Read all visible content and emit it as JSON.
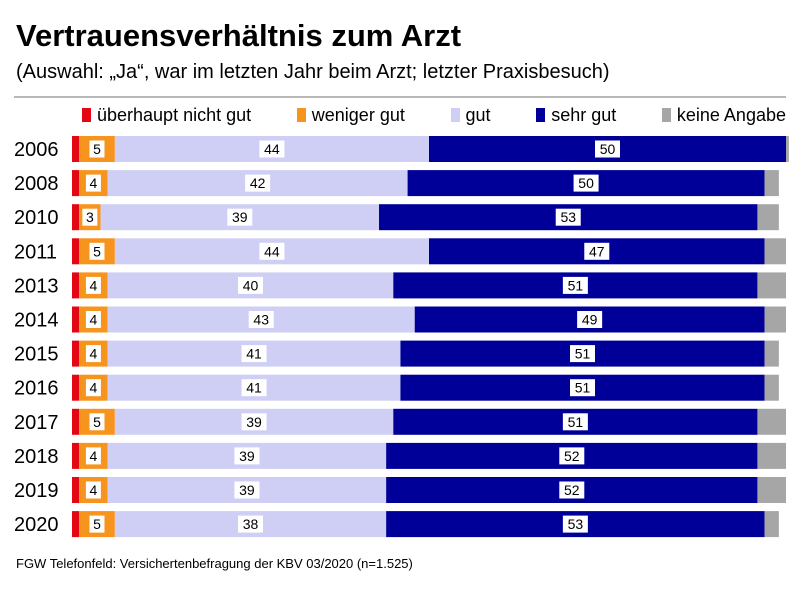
{
  "title": "Vertrauensverhältnis zum Arzt",
  "subtitle": "(Auswahl: „Ja“, war im letzten Jahr beim Arzt; letzter Praxisbesuch)",
  "source": "FGW Telefonfeld: Versichertenbefragung der KBV 03/2020 (n=1.525)",
  "chart_data": {
    "type": "bar",
    "orientation": "horizontal",
    "stacked": true,
    "normalized_to": 100,
    "categories": [
      "2006",
      "2008",
      "2010",
      "2011",
      "2013",
      "2014",
      "2015",
      "2016",
      "2017",
      "2018",
      "2019",
      "2020"
    ],
    "series": [
      {
        "name": "überhaupt nicht gut",
        "color": "#e30613",
        "values": [
          1,
          1,
          1,
          1,
          1,
          1,
          1,
          1,
          1,
          1,
          1,
          1
        ]
      },
      {
        "name": "weniger gut",
        "color": "#f7941d",
        "values": [
          5,
          4,
          3,
          5,
          4,
          4,
          4,
          4,
          5,
          4,
          4,
          5
        ]
      },
      {
        "name": "gut",
        "color": "#cfcff5",
        "values": [
          44,
          42,
          39,
          44,
          40,
          43,
          41,
          41,
          39,
          39,
          39,
          38
        ]
      },
      {
        "name": "sehr gut",
        "color": "#000099",
        "values": [
          50,
          50,
          53,
          47,
          51,
          49,
          51,
          51,
          51,
          52,
          52,
          53
        ]
      },
      {
        "name": "keine Angabe",
        "color": "#a6a6a6",
        "values": [
          0.4,
          2,
          3,
          3,
          4,
          3,
          2,
          2,
          4,
          4,
          4,
          2
        ]
      }
    ],
    "labeled_series": [
      "weniger gut",
      "gut",
      "sehr gut"
    ],
    "grid": false,
    "legend_position": "top"
  }
}
